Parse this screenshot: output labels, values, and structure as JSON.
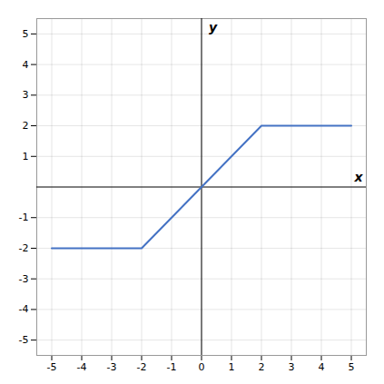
{
  "chart_data": {
    "type": "line",
    "xlabel": "x",
    "ylabel": "y",
    "x": [
      -5,
      -2,
      2,
      5
    ],
    "values": [
      -2,
      -2,
      2,
      2
    ],
    "color": "#4472c4",
    "xlim": [
      -5.5,
      5.5
    ],
    "ylim": [
      -5.5,
      5.5
    ],
    "xticks": [
      -5,
      -4,
      -3,
      -2,
      -1,
      0,
      1,
      2,
      3,
      4,
      5
    ],
    "yticks": [
      -5,
      -4,
      -3,
      -2,
      -1,
      1,
      2,
      3,
      4,
      5
    ],
    "grid": true
  }
}
